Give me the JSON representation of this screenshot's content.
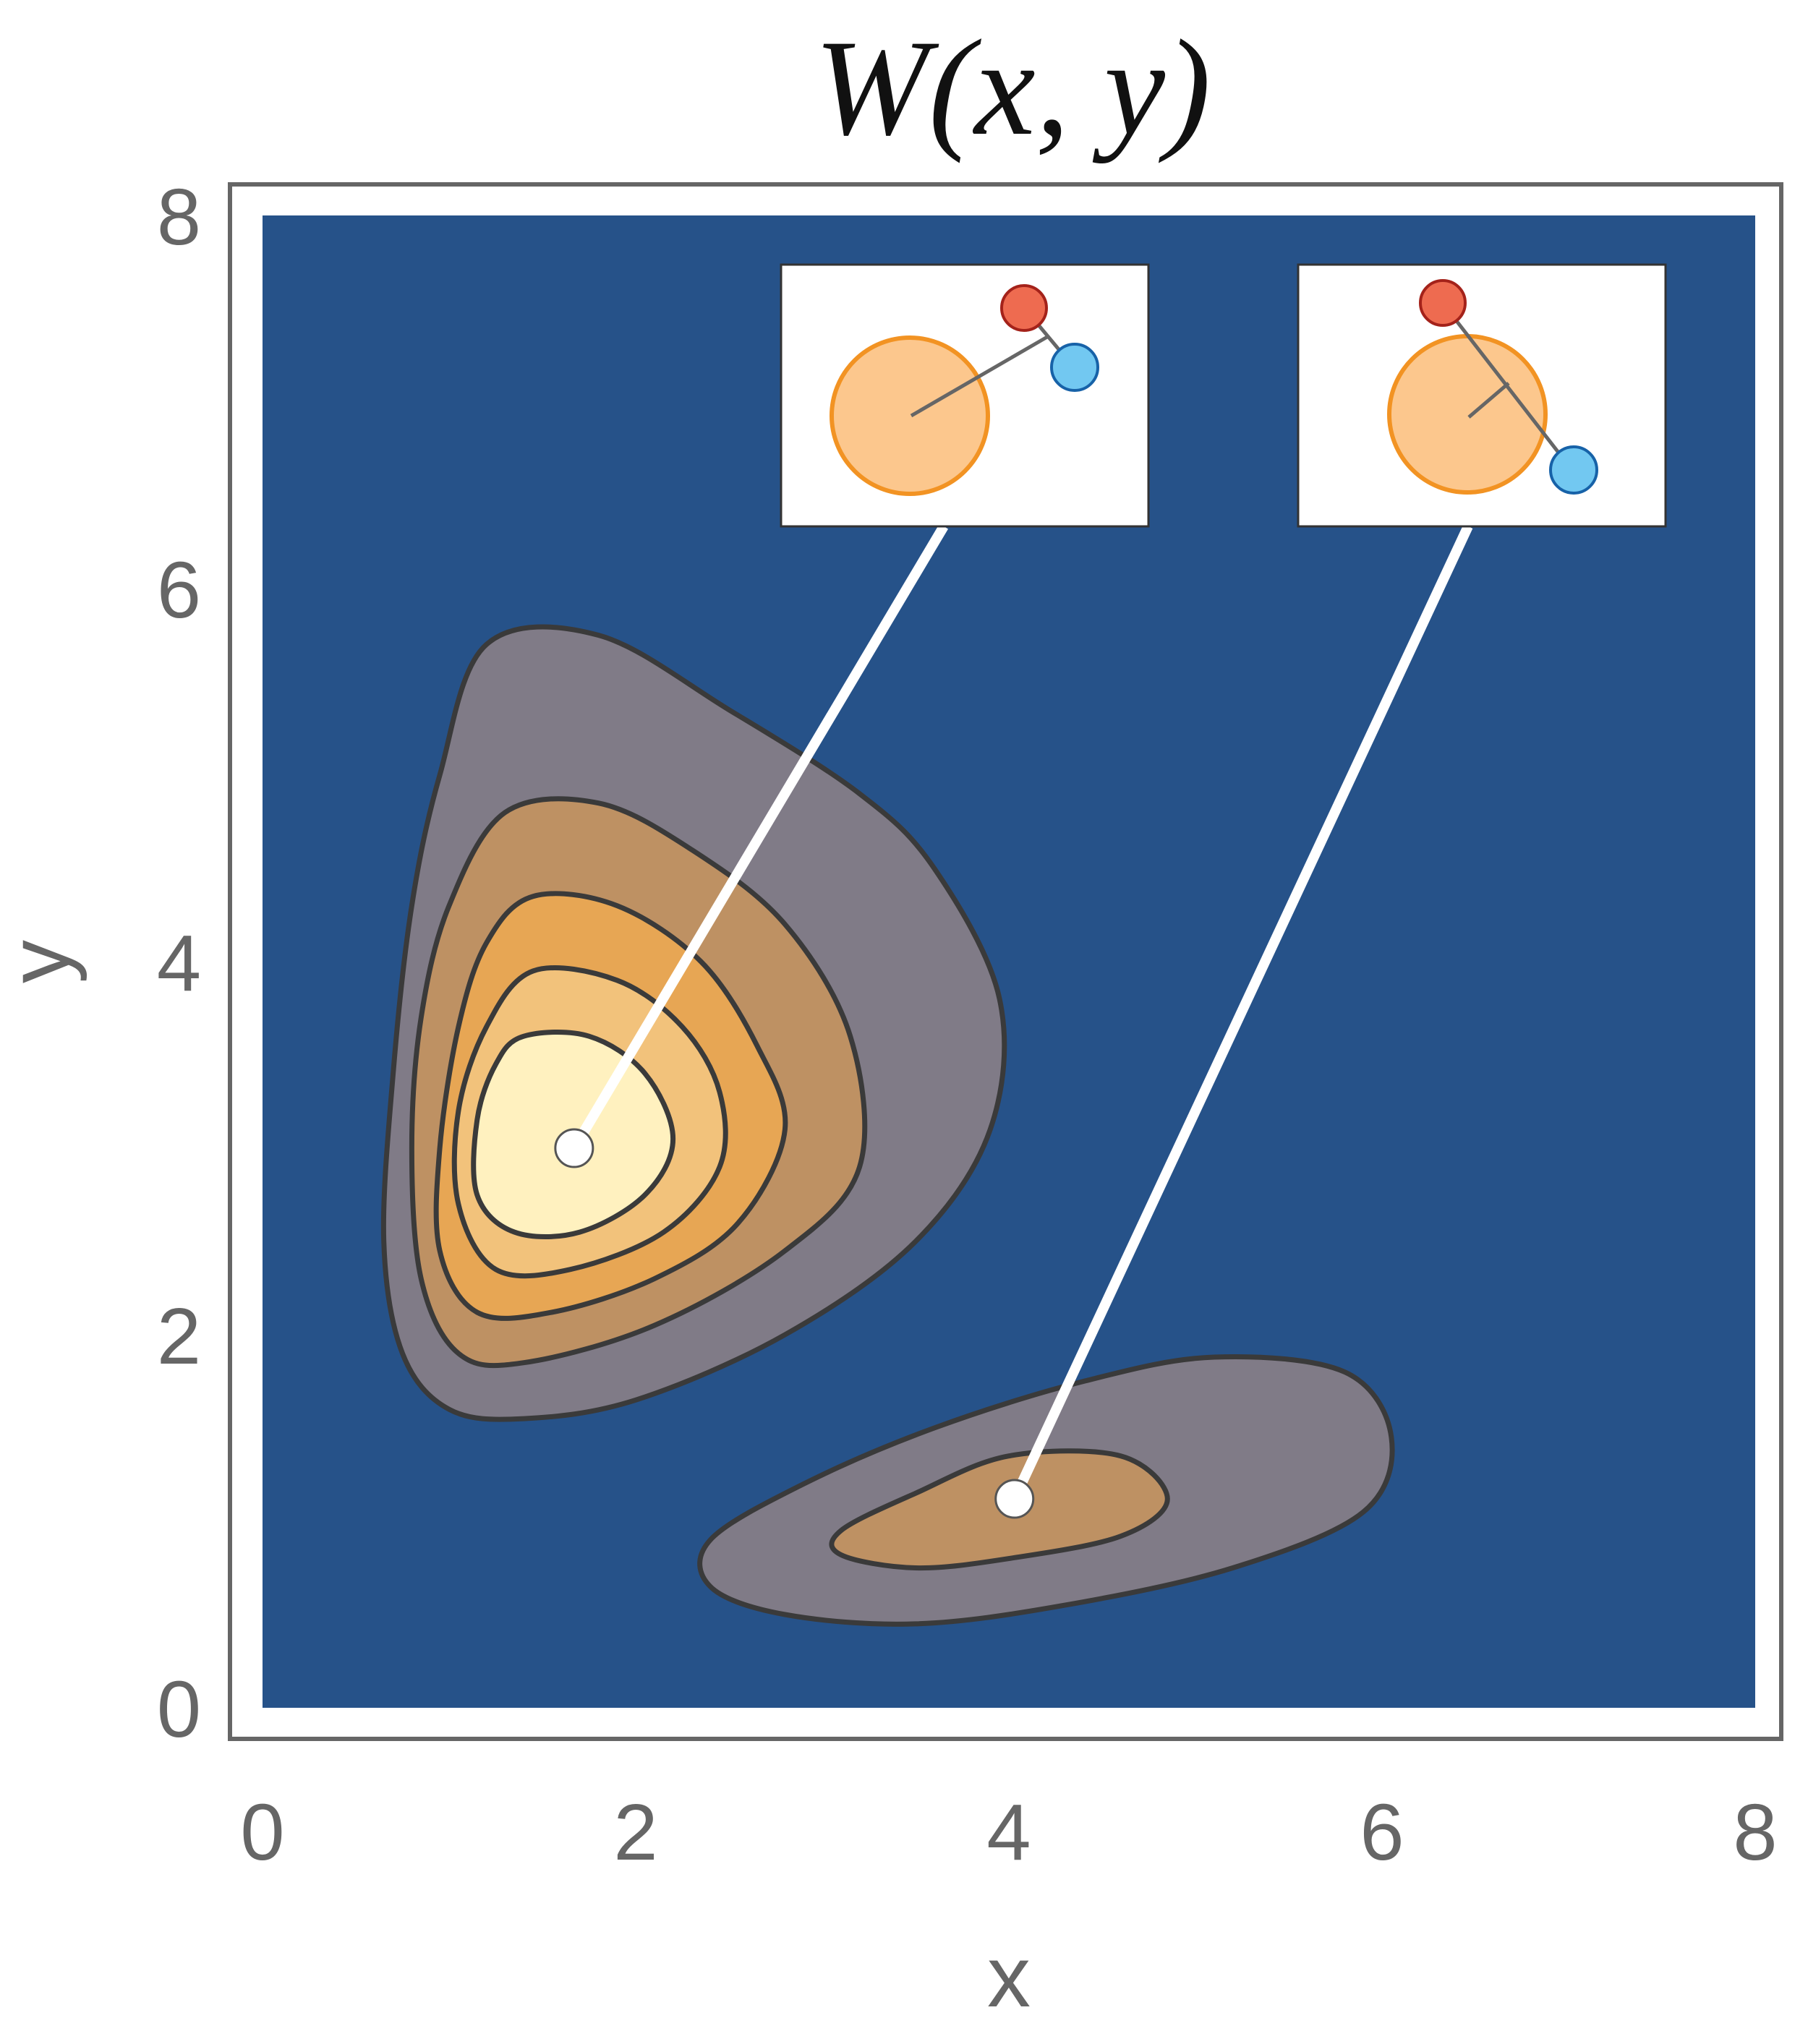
{
  "chart_data": {
    "type": "contour",
    "title": "W(x, y)",
    "xlabel": "x",
    "ylabel": "y",
    "xlim": [
      0,
      8
    ],
    "ylim": [
      0,
      8
    ],
    "xticks": [
      "0",
      "2",
      "4",
      "6",
      "8"
    ],
    "yticks": [
      "0",
      "2",
      "4",
      "6",
      "8"
    ],
    "grid": false,
    "background_color": "#265289",
    "colors": {
      "level1": "#807b87",
      "level2": "#be9163",
      "level3": "#e7a654",
      "level4": "#f2c27b",
      "level5": "#fff1bf",
      "contour_line": "#3a3a3a",
      "frame": "#666666"
    },
    "peaks": [
      {
        "x": 1.67,
        "y": 3.0,
        "levels": [
          [
            [
              1.2,
              5.7
            ],
            [
              1.8,
              5.75
            ],
            [
              2.5,
              5.35
            ],
            [
              3.2,
              4.9
            ],
            [
              3.6,
              4.5
            ],
            [
              3.95,
              3.8
            ],
            [
              3.9,
              3.1
            ],
            [
              3.5,
              2.5
            ],
            [
              2.8,
              2.0
            ],
            [
              2.0,
              1.65
            ],
            [
              1.4,
              1.55
            ],
            [
              1.0,
              1.6
            ],
            [
              0.75,
              1.9
            ],
            [
              0.65,
              2.5
            ],
            [
              0.7,
              3.4
            ],
            [
              0.8,
              4.3
            ],
            [
              0.95,
              5.0
            ]
          ],
          [
            [
              1.3,
              4.8
            ],
            [
              1.8,
              4.85
            ],
            [
              2.3,
              4.6
            ],
            [
              2.8,
              4.2
            ],
            [
              3.15,
              3.6
            ],
            [
              3.2,
              2.9
            ],
            [
              2.8,
              2.45
            ],
            [
              2.1,
              2.05
            ],
            [
              1.4,
              1.85
            ],
            [
              1.05,
              1.9
            ],
            [
              0.85,
              2.3
            ],
            [
              0.8,
              3.0
            ],
            [
              0.85,
              3.7
            ],
            [
              1.0,
              4.3
            ]
          ],
          [
            [
              1.45,
              4.35
            ],
            [
              1.9,
              4.3
            ],
            [
              2.35,
              4.0
            ],
            [
              2.65,
              3.55
            ],
            [
              2.8,
              3.1
            ],
            [
              2.55,
              2.6
            ],
            [
              2.1,
              2.3
            ],
            [
              1.55,
              2.12
            ],
            [
              1.15,
              2.12
            ],
            [
              0.95,
              2.45
            ],
            [
              0.95,
              3.0
            ],
            [
              1.05,
              3.65
            ],
            [
              1.2,
              4.1
            ]
          ],
          [
            [
              1.45,
              3.95
            ],
            [
              1.9,
              3.9
            ],
            [
              2.25,
              3.65
            ],
            [
              2.45,
              3.3
            ],
            [
              2.45,
              2.9
            ],
            [
              2.15,
              2.55
            ],
            [
              1.65,
              2.35
            ],
            [
              1.25,
              2.35
            ],
            [
              1.05,
              2.7
            ],
            [
              1.05,
              3.2
            ],
            [
              1.2,
              3.65
            ]
          ],
          [
            [
              1.4,
              3.6
            ],
            [
              1.75,
              3.6
            ],
            [
              2.05,
              3.4
            ],
            [
              2.2,
              3.05
            ],
            [
              2.05,
              2.75
            ],
            [
              1.7,
              2.55
            ],
            [
              1.35,
              2.55
            ],
            [
              1.15,
              2.75
            ],
            [
              1.15,
              3.15
            ],
            [
              1.25,
              3.45
            ]
          ]
        ]
      },
      {
        "x": 4.03,
        "y": 1.12,
        "levels": [
          [
            [
              2.4,
              0.9
            ],
            [
              2.9,
              1.2
            ],
            [
              3.6,
              1.5
            ],
            [
              4.4,
              1.75
            ],
            [
              5.1,
              1.88
            ],
            [
              5.8,
              1.8
            ],
            [
              6.05,
              1.45
            ],
            [
              5.9,
              1.05
            ],
            [
              5.2,
              0.75
            ],
            [
              4.3,
              0.55
            ],
            [
              3.5,
              0.45
            ],
            [
              2.8,
              0.5
            ],
            [
              2.4,
              0.65
            ]
          ],
          [
            [
              3.1,
              0.95
            ],
            [
              3.5,
              1.15
            ],
            [
              4.0,
              1.35
            ],
            [
              4.6,
              1.35
            ],
            [
              4.85,
              1.12
            ],
            [
              4.6,
              0.92
            ],
            [
              4.0,
              0.8
            ],
            [
              3.5,
              0.75
            ],
            [
              3.1,
              0.82
            ]
          ]
        ]
      }
    ],
    "callouts": [
      {
        "x": 1.67,
        "y": 3.0,
        "inset": "molecule-1"
      },
      {
        "x": 4.03,
        "y": 1.12,
        "inset": "molecule-2"
      }
    ]
  }
}
